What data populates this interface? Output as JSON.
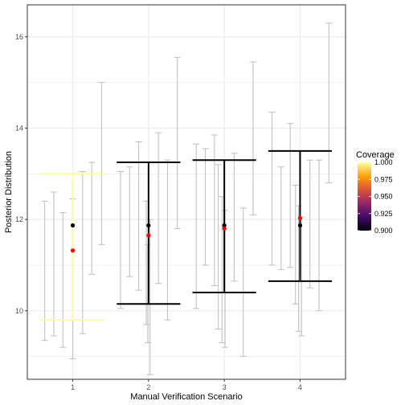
{
  "chart_data": {
    "type": "scatter",
    "xlabel": "Manual Verification Scenario",
    "ylabel": "Posterior Distribution",
    "xlim": [
      0.4,
      4.6
    ],
    "ylim": [
      8.5,
      16.7
    ],
    "x_ticks": [
      1,
      2,
      3,
      4
    ],
    "y_ticks": [
      10,
      12,
      14,
      16
    ],
    "grid": true,
    "legend": {
      "title": "Coverage",
      "position": "right",
      "range": [
        0.9,
        1.0
      ],
      "ticks": [
        "1.000",
        "0.975",
        "0.950",
        "0.925",
        "0.900"
      ]
    },
    "gray_intervals": [
      {
        "x": 0.63,
        "low": 9.35,
        "high": 12.4
      },
      {
        "x": 0.75,
        "low": 9.45,
        "high": 12.6
      },
      {
        "x": 0.87,
        "low": 9.2,
        "high": 12.15
      },
      {
        "x": 1.0,
        "low": 8.95,
        "high": 12.45
      },
      {
        "x": 1.13,
        "low": 9.5,
        "high": 13.05
      },
      {
        "x": 1.25,
        "low": 10.8,
        "high": 13.25
      },
      {
        "x": 1.38,
        "low": 11.45,
        "high": 15.0
      },
      {
        "x": 1.63,
        "low": 10.05,
        "high": 13.05
      },
      {
        "x": 1.75,
        "low": 10.75,
        "high": 13.15
      },
      {
        "x": 1.87,
        "low": 10.45,
        "high": 13.7
      },
      {
        "x": 1.97,
        "low": 9.7,
        "high": 12.4
      },
      {
        "x": 1.99,
        "low": 9.3,
        "high": 11.45
      },
      {
        "x": 2.02,
        "low": 8.6,
        "high": 12.0
      },
      {
        "x": 2.13,
        "low": 10.6,
        "high": 13.9
      },
      {
        "x": 2.25,
        "low": 9.8,
        "high": 13.3
      },
      {
        "x": 2.38,
        "low": 11.8,
        "high": 15.55
      },
      {
        "x": 2.63,
        "low": 10.05,
        "high": 13.65
      },
      {
        "x": 2.75,
        "low": 11.0,
        "high": 13.55
      },
      {
        "x": 2.87,
        "low": 10.55,
        "high": 13.85
      },
      {
        "x": 2.92,
        "low": 9.6,
        "high": 13.2
      },
      {
        "x": 2.97,
        "low": 9.3,
        "high": 12.5
      },
      {
        "x": 3.01,
        "low": 9.2,
        "high": 12.2
      },
      {
        "x": 3.13,
        "low": 10.65,
        "high": 13.45
      },
      {
        "x": 3.25,
        "low": 9.0,
        "high": 12.25
      },
      {
        "x": 3.38,
        "low": 12.1,
        "high": 15.45
      },
      {
        "x": 3.63,
        "low": 11.0,
        "high": 14.35
      },
      {
        "x": 3.75,
        "low": 10.9,
        "high": 13.15
      },
      {
        "x": 3.87,
        "low": 10.95,
        "high": 14.1
      },
      {
        "x": 3.94,
        "low": 10.15,
        "high": 12.75
      },
      {
        "x": 3.98,
        "low": 9.55,
        "high": 12.3
      },
      {
        "x": 4.02,
        "low": 9.45,
        "high": 12.05
      },
      {
        "x": 4.13,
        "low": 10.5,
        "high": 13.3
      },
      {
        "x": 4.25,
        "low": 10.0,
        "high": 13.3
      },
      {
        "x": 4.38,
        "low": 12.8,
        "high": 16.3
      }
    ],
    "summary_intervals": [
      {
        "x": 1,
        "low": 9.8,
        "high": 13.0,
        "coverage": 1.0
      },
      {
        "x": 2,
        "low": 10.15,
        "high": 13.25,
        "coverage": 0.9
      },
      {
        "x": 3,
        "low": 10.4,
        "high": 13.3,
        "coverage": 0.9
      },
      {
        "x": 4,
        "low": 10.65,
        "high": 13.5,
        "coverage": 0.9
      }
    ],
    "true_value_points": [
      {
        "x": 1,
        "y": 11.87
      },
      {
        "x": 2,
        "y": 11.87
      },
      {
        "x": 3,
        "y": 11.87
      },
      {
        "x": 4,
        "y": 11.87
      }
    ],
    "estimate_points": [
      {
        "x": 1,
        "y": 11.32
      },
      {
        "x": 2,
        "y": 11.65
      },
      {
        "x": 3,
        "y": 11.8
      },
      {
        "x": 4,
        "y": 12.03
      }
    ],
    "colors": {
      "gray_interval": "#bdbdbd",
      "true_value": "#000000",
      "estimate": "#ff0000",
      "grid": "#ebebeb",
      "panel_border": "#333333",
      "coverage_gradient": [
        "#000004",
        "#420a68",
        "#932667",
        "#dd513a",
        "#fca50a",
        "#fcffa4"
      ]
    }
  }
}
